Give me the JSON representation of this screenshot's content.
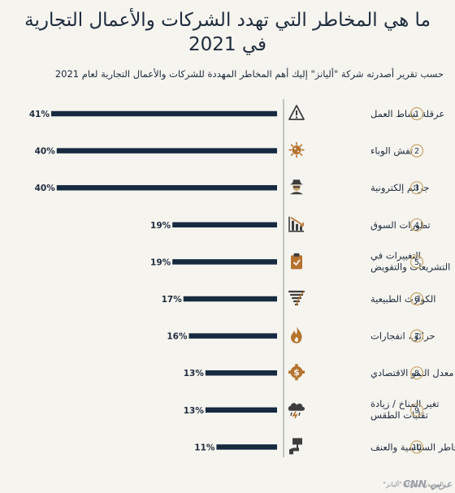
{
  "chart_data": {
    "type": "bar",
    "orientation": "horizontal",
    "title": "ما هي المخاطر التي تهدد الشركات والأعمال التجارية في 2021",
    "subtitle": "حسب تقرير أصدرته شركة \"أليانز\" إليك أهم المخاطر المهددة للشركات والأعمال التجارية لعام 2021",
    "categories": [
      "عرقلة نشاط العمل",
      "تفش الوباء",
      "جرائم إلكترونية",
      "تطورات السوق",
      "التغييرات في التشريعات والتفويض",
      "الكوارث الطبيعية",
      "حرائق، انفجارات",
      "معدل النمو الاقتصادي",
      "تغير المناخ / زيادة تقلبات الطقس",
      "المخاطر السياسية والعنف"
    ],
    "category_lines": [
      [
        "عرقلة نشاط العمل"
      ],
      [
        "تفش الوباء"
      ],
      [
        "جرائم إلكترونية"
      ],
      [
        "تطورات السوق"
      ],
      [
        "التغييرات في",
        "التشريعات والتفويض"
      ],
      [
        "الكوارث الطبيعية"
      ],
      [
        "حرائق، انفجارات"
      ],
      [
        "معدل النمو الاقتصادي"
      ],
      [
        "تغير المناخ / زيادة",
        "تقلبات الطقس"
      ],
      [
        "المخاطر السياسية والعنف"
      ]
    ],
    "ranks": [
      "1",
      "2",
      "3",
      "4",
      "5",
      "6",
      "7",
      "8",
      "9",
      "10"
    ],
    "values": [
      41,
      40,
      40,
      19,
      19,
      17,
      16,
      13,
      13,
      11
    ],
    "value_labels": [
      "41%",
      "40%",
      "40%",
      "19%",
      "19%",
      "17%",
      "16%",
      "13%",
      "13%",
      "11%"
    ],
    "icons": [
      "warning-icon",
      "virus-icon",
      "hacker-icon",
      "market-chart-icon",
      "clipboard-check-icon",
      "tornado-icon",
      "fire-icon",
      "dollar-gear-icon",
      "storm-cloud-icon",
      "protest-sign-icon"
    ],
    "xlim": [
      0,
      41
    ],
    "bar_color": "#162a40"
  },
  "footer": {
    "source": "المصدر: شركة \"أليانز\"",
    "logo": "CNN عربي"
  },
  "colors": {
    "background": "#f5f4ef",
    "bar": "#162a40",
    "rank_circle": "#c8a46a",
    "icon": "#3d3d3d",
    "divider": "#8a8f96"
  }
}
